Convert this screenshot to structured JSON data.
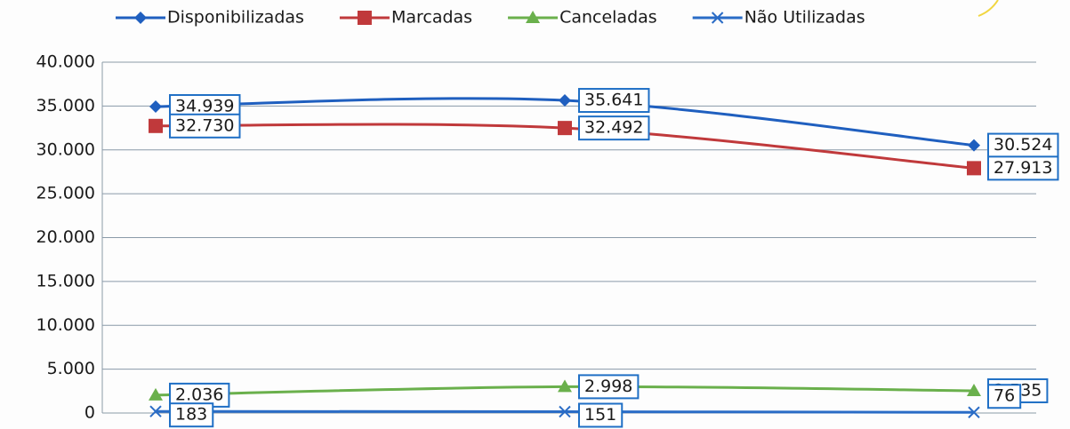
{
  "chart_data": {
    "type": "line",
    "categories": [
      null,
      null,
      null
    ],
    "series": [
      {
        "name": "Disponibilizadas",
        "color": "#1f5fbf",
        "marker": "diamond",
        "values": [
          34939,
          35641,
          30524
        ],
        "value_labels": [
          "34.939",
          "35.641",
          "30.524"
        ]
      },
      {
        "name": "Marcadas",
        "color": "#c0393b",
        "marker": "square",
        "values": [
          32730,
          32492,
          27913
        ],
        "value_labels": [
          "32.730",
          "32.492",
          "27.913"
        ]
      },
      {
        "name": "Canceladas",
        "color": "#6ab04c",
        "marker": "triangle",
        "values": [
          2036,
          2998,
          2535
        ],
        "value_labels": [
          "2.036",
          "2.998",
          "2.535"
        ]
      },
      {
        "name": "Não Utilizadas",
        "color": "#2a6cc6",
        "marker": "x",
        "values": [
          183,
          151,
          76
        ],
        "value_labels": [
          "183",
          "151",
          "76"
        ]
      }
    ],
    "ylim": [
      0,
      40000
    ],
    "yticks": [
      0,
      {
        "value": 5000,
        "label": "5.000"
      },
      {
        "value": 10000,
        "label": "10.000"
      },
      {
        "value": 15000,
        "label": "15.000"
      },
      {
        "value": 20000,
        "label": "20.000"
      },
      {
        "value": 25000,
        "label": "25.000"
      },
      {
        "value": 30000,
        "label": "30.000"
      },
      {
        "value": 35000,
        "label": "35.000"
      },
      {
        "value": 40000,
        "label": "40.000"
      }
    ],
    "grid": true,
    "legend": "top"
  }
}
